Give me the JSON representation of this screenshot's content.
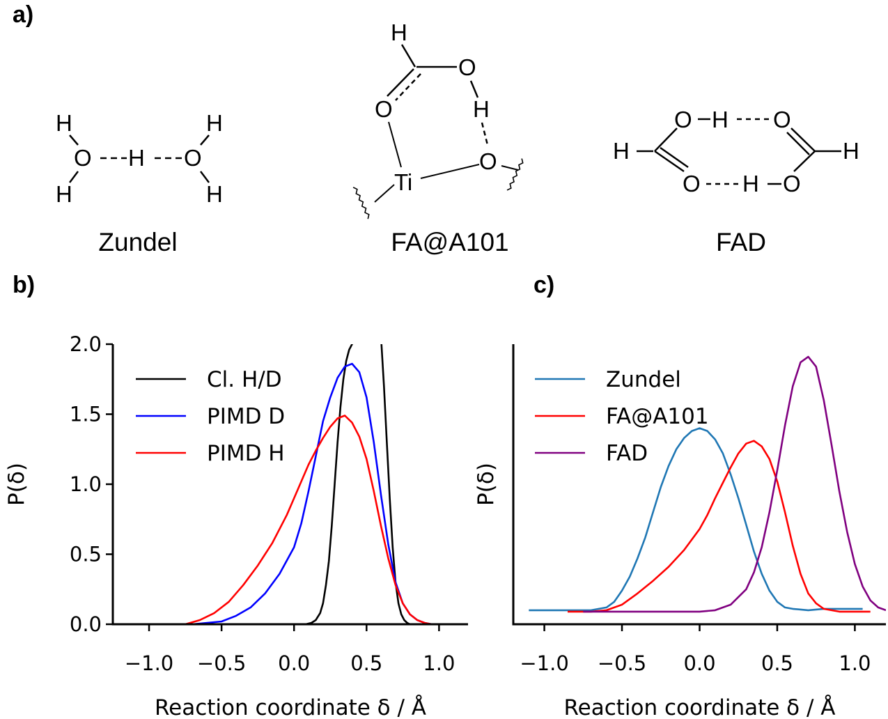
{
  "panel_labels": {
    "a": "a)",
    "b": "b)",
    "c": "c)"
  },
  "molecules": {
    "zundel": {
      "name": "Zundel"
    },
    "fa_a101": {
      "name": "FA@A101"
    },
    "fad": {
      "name": "FAD"
    }
  },
  "colors": {
    "black": "#000000",
    "blue": "#0000ff",
    "red": "#ff0000",
    "tab_blue": "#1f77b4",
    "purple": "#800080"
  },
  "chart_data": [
    {
      "type": "line",
      "panel": "b",
      "xlabel": "Reaction coordinate δ / Å",
      "ylabel": "P(δ)",
      "xlim": [
        -1.25,
        1.2
      ],
      "ylim": [
        0,
        2.0
      ],
      "xticks": [
        -1.0,
        -0.5,
        0.0,
        0.5,
        1.0
      ],
      "xtick_labels": [
        "−1.0",
        "−0.5",
        "0.0",
        "0.5",
        "1.0"
      ],
      "yticks": [
        0.0,
        0.5,
        1.0,
        1.5,
        2.0
      ],
      "ytick_labels": [
        "0.0",
        "0.5",
        "1.0",
        "1.5",
        "2.0"
      ],
      "legend_position": "top-left",
      "series": [
        {
          "name": "Cl. H/D",
          "color": "#000000",
          "x": [
            0.08,
            0.12,
            0.15,
            0.18,
            0.2,
            0.22,
            0.24,
            0.26,
            0.28,
            0.3,
            0.32,
            0.34,
            0.36,
            0.38,
            0.4,
            0.42,
            0.6,
            0.62,
            0.64,
            0.66,
            0.68,
            0.7,
            0.72,
            0.74,
            0.76,
            0.78,
            0.8
          ],
          "y": [
            0.0,
            0.01,
            0.03,
            0.08,
            0.15,
            0.28,
            0.45,
            0.7,
            1.0,
            1.3,
            1.55,
            1.75,
            1.88,
            1.96,
            2.0,
            2.05,
            2.05,
            1.7,
            1.3,
            0.9,
            0.55,
            0.3,
            0.15,
            0.07,
            0.03,
            0.01,
            0.0
          ]
        },
        {
          "name": "PIMD D",
          "color": "#0000ff",
          "x": [
            -0.7,
            -0.5,
            -0.4,
            -0.3,
            -0.2,
            -0.1,
            0.0,
            0.05,
            0.1,
            0.15,
            0.2,
            0.25,
            0.3,
            0.35,
            0.4,
            0.45,
            0.5,
            0.55,
            0.6,
            0.65,
            0.7,
            0.75,
            0.8,
            0.85,
            0.9,
            0.95,
            1.0
          ],
          "y": [
            0.0,
            0.02,
            0.06,
            0.12,
            0.22,
            0.36,
            0.55,
            0.72,
            0.95,
            1.2,
            1.45,
            1.62,
            1.76,
            1.84,
            1.86,
            1.8,
            1.62,
            1.3,
            0.92,
            0.57,
            0.3,
            0.15,
            0.07,
            0.03,
            0.01,
            0.0,
            0.0
          ]
        },
        {
          "name": "PIMD H",
          "color": "#ff0000",
          "x": [
            -0.75,
            -0.65,
            -0.55,
            -0.45,
            -0.35,
            -0.25,
            -0.15,
            -0.05,
            0.0,
            0.05,
            0.1,
            0.15,
            0.2,
            0.25,
            0.3,
            0.35,
            0.4,
            0.45,
            0.5,
            0.55,
            0.6,
            0.65,
            0.7,
            0.75,
            0.8,
            0.85,
            0.9,
            0.95,
            1.0
          ],
          "y": [
            0.0,
            0.03,
            0.08,
            0.16,
            0.28,
            0.42,
            0.58,
            0.78,
            0.9,
            1.02,
            1.14,
            1.24,
            1.33,
            1.41,
            1.47,
            1.49,
            1.44,
            1.34,
            1.18,
            0.95,
            0.7,
            0.47,
            0.28,
            0.15,
            0.07,
            0.03,
            0.01,
            0.0,
            0.0
          ]
        }
      ]
    },
    {
      "type": "line",
      "panel": "c",
      "xlabel": "Reaction coordinate δ / Å",
      "ylabel": "P(δ)",
      "xlim": [
        -1.2,
        1.2
      ],
      "ylim": [
        0,
        2.0
      ],
      "xticks": [
        -1.0,
        -0.5,
        0.0,
        0.5,
        1.0
      ],
      "xtick_labels": [
        "−1.0",
        "−0.5",
        "0.0",
        "0.5",
        "1.0"
      ],
      "legend_position": "top-left",
      "series": [
        {
          "name": "Zundel",
          "color": "#1f77b4",
          "x": [
            -1.1,
            -1.0,
            -0.9,
            -0.8,
            -0.7,
            -0.6,
            -0.55,
            -0.5,
            -0.45,
            -0.4,
            -0.35,
            -0.3,
            -0.25,
            -0.2,
            -0.15,
            -0.1,
            -0.05,
            0.0,
            0.05,
            0.1,
            0.15,
            0.2,
            0.25,
            0.3,
            0.35,
            0.4,
            0.45,
            0.5,
            0.55,
            0.6,
            0.7,
            0.8,
            0.9,
            1.0,
            1.05
          ],
          "y": [
            0.1,
            0.1,
            0.1,
            0.1,
            0.1,
            0.12,
            0.16,
            0.24,
            0.34,
            0.47,
            0.62,
            0.8,
            0.98,
            1.13,
            1.25,
            1.33,
            1.38,
            1.4,
            1.38,
            1.32,
            1.22,
            1.07,
            0.9,
            0.71,
            0.52,
            0.36,
            0.24,
            0.16,
            0.12,
            0.11,
            0.1,
            0.11,
            0.11,
            0.11,
            0.11
          ]
        },
        {
          "name": "FA@A101",
          "color": "#ff0000",
          "x": [
            -0.85,
            -0.7,
            -0.6,
            -0.5,
            -0.4,
            -0.3,
            -0.2,
            -0.1,
            0.0,
            0.05,
            0.1,
            0.15,
            0.2,
            0.25,
            0.3,
            0.35,
            0.4,
            0.45,
            0.5,
            0.55,
            0.6,
            0.65,
            0.7,
            0.75,
            0.8,
            0.9,
            1.0,
            1.1
          ],
          "y": [
            0.09,
            0.09,
            0.1,
            0.14,
            0.22,
            0.31,
            0.41,
            0.53,
            0.68,
            0.78,
            0.9,
            1.01,
            1.12,
            1.22,
            1.29,
            1.31,
            1.27,
            1.18,
            1.02,
            0.8,
            0.56,
            0.36,
            0.22,
            0.15,
            0.11,
            0.09,
            0.09,
            0.09
          ]
        },
        {
          "name": "FAD",
          "color": "#800080",
          "x": [
            -0.75,
            -0.5,
            -0.2,
            0.0,
            0.1,
            0.2,
            0.3,
            0.35,
            0.4,
            0.45,
            0.5,
            0.55,
            0.6,
            0.65,
            0.7,
            0.75,
            0.8,
            0.85,
            0.9,
            0.95,
            1.0,
            1.05,
            1.1,
            1.15,
            1.2
          ],
          "y": [
            0.09,
            0.09,
            0.09,
            0.09,
            0.1,
            0.14,
            0.25,
            0.37,
            0.55,
            0.8,
            1.1,
            1.42,
            1.7,
            1.87,
            1.91,
            1.84,
            1.6,
            1.28,
            0.95,
            0.66,
            0.43,
            0.27,
            0.17,
            0.12,
            0.1
          ]
        }
      ]
    }
  ]
}
